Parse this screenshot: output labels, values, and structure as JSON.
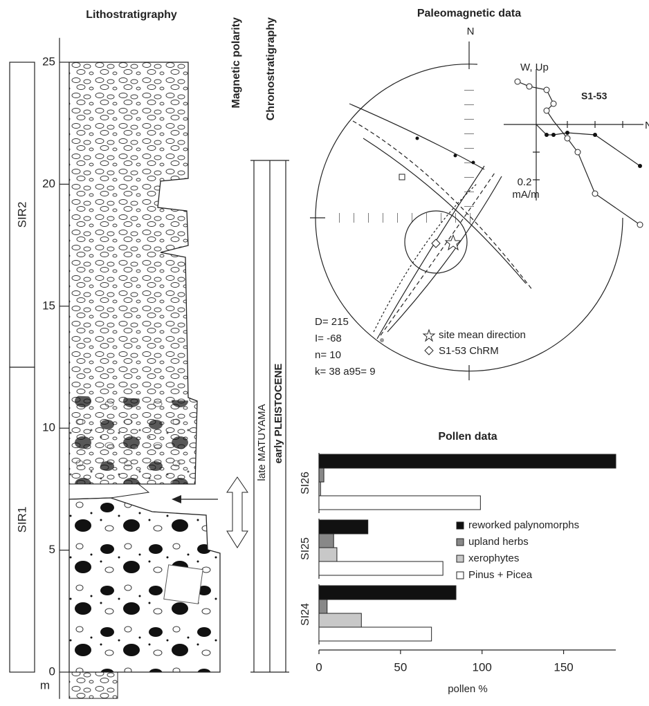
{
  "lithostratigraphy": {
    "title": "Lithostratigraphy",
    "depth_lim": [
      -1.1,
      26
    ],
    "depth_ticks": [
      0,
      5,
      10,
      15,
      20,
      25
    ],
    "unit": "m",
    "units": [
      {
        "label": "SIR1",
        "from": 0,
        "to": 12.5
      },
      {
        "label": "SIR2",
        "from": 12.5,
        "to": 25
      }
    ]
  },
  "magnetic_polarity": {
    "title": "Magnetic polarity"
  },
  "chronostratigraphy": {
    "title": "Chronostratigraphy",
    "labels": [
      "late MATUYAMA",
      "early PLEISTOCENE"
    ]
  },
  "paleomagnetic": {
    "title": "Paleomagnetic data",
    "north": "N",
    "zijderveld": {
      "label": "W, Up",
      "sample": "S1-53",
      "scale": "0.2",
      "scale_unit": "mA/m",
      "axis_end": "N"
    },
    "stats": [
      "D= 215",
      "I= -68",
      "n= 10",
      "k= 38  a95= 9"
    ],
    "legend": [
      "site mean direction",
      "S1-53 ChRM"
    ]
  },
  "chart_data": {
    "type": "bar",
    "orientation": "horizontal",
    "title": "Pollen data",
    "x_label": "pollen %",
    "categories": [
      "SI26",
      "SI25",
      "SI24"
    ],
    "series": [
      {
        "name": "reworked palynomorphs",
        "color": "#111111",
        "values": [
          182,
          30,
          84
        ]
      },
      {
        "name": "upland herbs",
        "color": "#888888",
        "values": [
          3,
          9,
          5
        ]
      },
      {
        "name": "xerophytes",
        "color": "#c8c8c8",
        "values": [
          1,
          11,
          26
        ]
      },
      {
        "name": "Pinus + Picea",
        "color": "#ffffff",
        "values": [
          99,
          76,
          69
        ]
      }
    ],
    "xlim": [
      0,
      182
    ],
    "xticks": [
      0,
      50,
      100,
      150
    ]
  }
}
